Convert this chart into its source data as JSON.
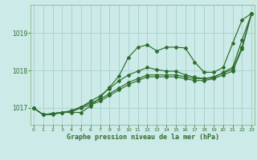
{
  "title": "Graphe pression niveau de la mer (hPa)",
  "background_color": "#cceae7",
  "grid_color": "#aad4d0",
  "line_color": "#2d6e2d",
  "x_labels": [
    "0",
    "1",
    "2",
    "3",
    "4",
    "5",
    "6",
    "7",
    "8",
    "9",
    "10",
    "11",
    "12",
    "13",
    "14",
    "15",
    "16",
    "17",
    "18",
    "19",
    "20",
    "21",
    "22",
    "23"
  ],
  "yticks": [
    1017,
    1018,
    1019
  ],
  "ylim": [
    1016.55,
    1019.75
  ],
  "xlim": [
    -0.3,
    23.3
  ],
  "series": [
    [
      1017.0,
      1016.82,
      1016.82,
      1016.88,
      1016.88,
      1016.88,
      1017.05,
      1017.28,
      1017.55,
      1017.85,
      1018.35,
      1018.62,
      1018.68,
      1018.52,
      1018.62,
      1018.62,
      1018.6,
      1018.22,
      1017.95,
      1017.95,
      1018.08,
      1018.72,
      1019.35,
      1019.52
    ],
    [
      1017.0,
      1016.82,
      1016.85,
      1016.88,
      1016.9,
      1017.02,
      1017.18,
      1017.32,
      1017.52,
      1017.72,
      1017.88,
      1017.98,
      1018.08,
      1018.02,
      1017.98,
      1017.98,
      1017.88,
      1017.82,
      1017.78,
      1017.8,
      1017.95,
      1018.08,
      1018.82,
      1019.52
    ],
    [
      1017.0,
      1016.82,
      1016.85,
      1016.88,
      1016.9,
      1017.0,
      1017.08,
      1017.18,
      1017.33,
      1017.48,
      1017.62,
      1017.73,
      1017.83,
      1017.83,
      1017.83,
      1017.83,
      1017.78,
      1017.73,
      1017.73,
      1017.78,
      1017.88,
      1017.98,
      1018.58,
      1019.52
    ],
    [
      1017.0,
      1016.82,
      1016.85,
      1016.88,
      1016.93,
      1017.03,
      1017.13,
      1017.23,
      1017.38,
      1017.53,
      1017.68,
      1017.78,
      1017.88,
      1017.88,
      1017.88,
      1017.88,
      1017.83,
      1017.78,
      1017.78,
      1017.83,
      1017.93,
      1018.03,
      1018.63,
      1019.52
    ]
  ]
}
